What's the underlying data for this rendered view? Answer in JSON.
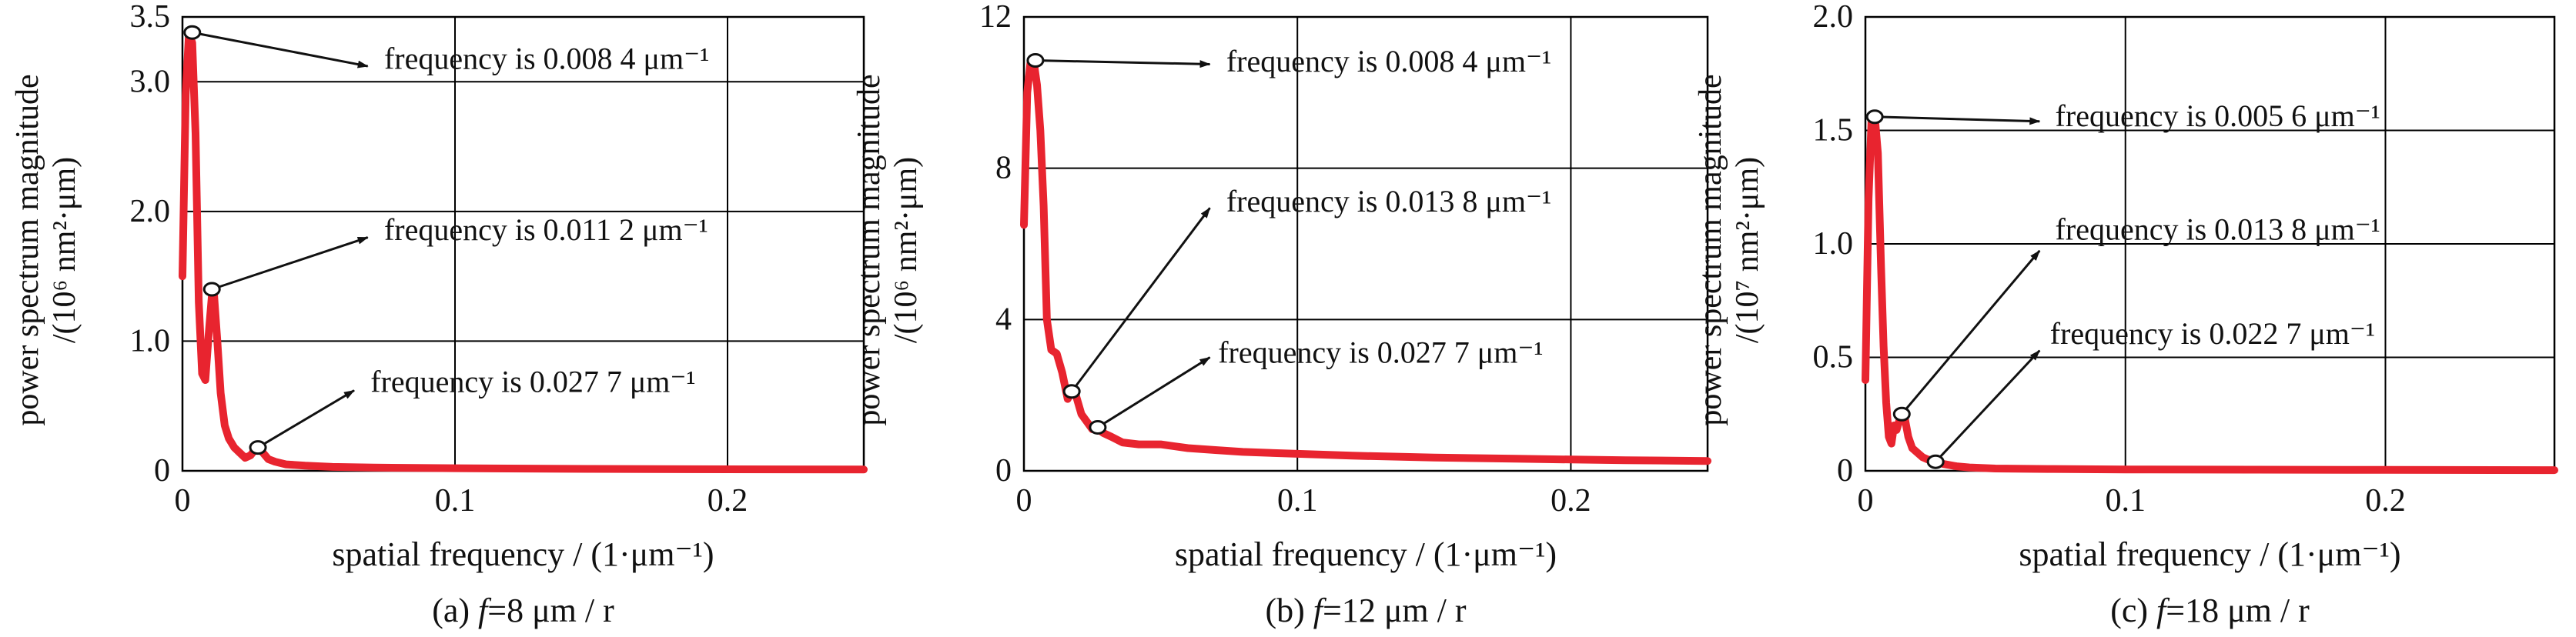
{
  "chart_data": [
    {
      "type": "line",
      "caption": "(a) f=8 μm / r",
      "caption_prefix": "(a) ",
      "caption_var": "f",
      "caption_rest": "=8 μm / r",
      "xlabel": "spatial frequency / (1·μm⁻¹)",
      "ylabel_line1": "power spectrum magnitude",
      "ylabel_line2": "/(10⁶ nm²·μm)",
      "xlim": [
        0,
        0.25
      ],
      "ylim": [
        0,
        3.5
      ],
      "x_ticks": [
        {
          "value": 0,
          "label": "0"
        },
        {
          "value": 0.1,
          "label": "0.1"
        },
        {
          "value": 0.2,
          "label": "0.2"
        }
      ],
      "y_ticks": [
        {
          "value": 0,
          "label": "0"
        },
        {
          "value": 1.0,
          "label": "1.0"
        },
        {
          "value": 2.0,
          "label": "2.0"
        },
        {
          "value": 3.0,
          "label": "3.0"
        },
        {
          "value": 3.5,
          "label": "3.5"
        }
      ],
      "color": "#e8242f",
      "x": [
        0.0,
        0.0012,
        0.0024,
        0.0036,
        0.0048,
        0.006,
        0.0072,
        0.0084,
        0.0096,
        0.0108,
        0.0116,
        0.0128,
        0.014,
        0.0155,
        0.017,
        0.019,
        0.021,
        0.023,
        0.025,
        0.0265,
        0.0277,
        0.0295,
        0.0315,
        0.034,
        0.038,
        0.045,
        0.055,
        0.07,
        0.1,
        0.15,
        0.2,
        0.25
      ],
      "y": [
        1.5,
        2.9,
        3.38,
        3.3,
        2.6,
        1.3,
        0.75,
        0.7,
        1.05,
        1.35,
        1.35,
        1.0,
        0.6,
        0.35,
        0.25,
        0.18,
        0.14,
        0.1,
        0.12,
        0.16,
        0.18,
        0.14,
        0.09,
        0.07,
        0.05,
        0.04,
        0.03,
        0.025,
        0.02,
        0.015,
        0.012,
        0.01
      ],
      "annotations": [
        {
          "label": "frequency is 0.008 4 μm⁻¹",
          "peak_x": 0.0036,
          "peak_y": 3.38,
          "arrow_x": 0.068,
          "arrow_y": 3.12,
          "text_x": 0.074,
          "text_y": 3.17
        },
        {
          "label": "frequency is 0.011 2 μm⁻¹",
          "peak_x": 0.0108,
          "peak_y": 1.4,
          "arrow_x": 0.068,
          "arrow_y": 1.8,
          "text_x": 0.074,
          "text_y": 1.85
        },
        {
          "label": "frequency is 0.027 7 μm⁻¹",
          "peak_x": 0.0277,
          "peak_y": 0.18,
          "arrow_x": 0.063,
          "arrow_y": 0.62,
          "text_x": 0.069,
          "text_y": 0.68
        }
      ]
    },
    {
      "type": "line",
      "caption": "(b) f=12 μm / r",
      "caption_prefix": "(b) ",
      "caption_var": "f",
      "caption_rest": "=12 μm / r",
      "xlabel": "spatial frequency / (1·μm⁻¹)",
      "ylabel_line1": "power spectrum magnitude",
      "ylabel_line2": "/(10⁶ nm²·μm)",
      "xlim": [
        0,
        0.25
      ],
      "ylim": [
        0,
        12
      ],
      "x_ticks": [
        {
          "value": 0,
          "label": "0"
        },
        {
          "value": 0.1,
          "label": "0.1"
        },
        {
          "value": 0.2,
          "label": "0.2"
        }
      ],
      "y_ticks": [
        {
          "value": 0,
          "label": "0"
        },
        {
          "value": 4,
          "label": "4"
        },
        {
          "value": 8,
          "label": "8"
        },
        {
          "value": 12,
          "label": "12"
        }
      ],
      "color": "#e8242f",
      "x": [
        0.0,
        0.0012,
        0.0024,
        0.0036,
        0.0048,
        0.006,
        0.0072,
        0.0084,
        0.01,
        0.012,
        0.014,
        0.016,
        0.0175,
        0.019,
        0.021,
        0.023,
        0.025,
        0.027,
        0.029,
        0.032,
        0.036,
        0.042,
        0.05,
        0.06,
        0.07,
        0.08,
        0.1,
        0.12,
        0.15,
        0.18,
        0.2,
        0.22,
        0.25
      ],
      "y": [
        6.5,
        10.0,
        10.8,
        10.8,
        10.2,
        9.0,
        7.0,
        4.0,
        3.2,
        3.1,
        2.6,
        1.9,
        2.1,
        2.0,
        1.5,
        1.3,
        1.1,
        1.1,
        1.0,
        0.9,
        0.75,
        0.7,
        0.7,
        0.6,
        0.55,
        0.5,
        0.45,
        0.4,
        0.35,
        0.32,
        0.3,
        0.28,
        0.26
      ],
      "annotations": [
        {
          "label": "frequency is 0.008 4 μm⁻¹",
          "peak_x": 0.0042,
          "peak_y": 10.85,
          "arrow_x": 0.068,
          "arrow_y": 10.75,
          "text_x": 0.074,
          "text_y": 10.8
        },
        {
          "label": "frequency is 0.013 8 μm⁻¹",
          "peak_x": 0.0175,
          "peak_y": 2.1,
          "arrow_x": 0.068,
          "arrow_y": 6.95,
          "text_x": 0.074,
          "text_y": 7.1
        },
        {
          "label": "frequency is 0.027 7 μm⁻¹",
          "peak_x": 0.027,
          "peak_y": 1.15,
          "arrow_x": 0.068,
          "arrow_y": 3.0,
          "text_x": 0.071,
          "text_y": 3.1
        }
      ]
    },
    {
      "type": "line",
      "caption": "(c) f=18 μm / r",
      "caption_prefix": "(c) ",
      "caption_var": "f",
      "caption_rest": "=18 μm / r",
      "xlabel": "spatial frequency / (1·μm⁻¹)",
      "ylabel_line1": "power spectrum magnitude",
      "ylabel_line2": "/(10⁷ nm²·μm)",
      "xlim": [
        0,
        0.265
      ],
      "ylim": [
        0,
        2.0
      ],
      "x_ticks": [
        {
          "value": 0,
          "label": "0"
        },
        {
          "value": 0.1,
          "label": "0.1"
        },
        {
          "value": 0.2,
          "label": "0.2"
        }
      ],
      "y_ticks": [
        {
          "value": 0,
          "label": "0"
        },
        {
          "value": 0.5,
          "label": "0.5"
        },
        {
          "value": 1.0,
          "label": "1.0"
        },
        {
          "value": 1.5,
          "label": "1.5"
        },
        {
          "value": 2.0,
          "label": "2.0"
        }
      ],
      "color": "#e8242f",
      "x": [
        0.0,
        0.0012,
        0.0024,
        0.0036,
        0.0048,
        0.006,
        0.007,
        0.008,
        0.009,
        0.01,
        0.011,
        0.012,
        0.013,
        0.014,
        0.015,
        0.0165,
        0.018,
        0.02,
        0.022,
        0.024,
        0.026,
        0.028,
        0.03,
        0.035,
        0.04,
        0.05,
        0.07,
        0.1,
        0.15,
        0.2,
        0.265
      ],
      "y": [
        0.4,
        1.2,
        1.56,
        1.56,
        1.4,
        0.9,
        0.55,
        0.3,
        0.15,
        0.12,
        0.2,
        0.18,
        0.22,
        0.26,
        0.24,
        0.15,
        0.1,
        0.08,
        0.06,
        0.05,
        0.045,
        0.04,
        0.03,
        0.02,
        0.015,
        0.01,
        0.008,
        0.006,
        0.005,
        0.004,
        0.003
      ],
      "annotations": [
        {
          "label": "frequency is 0.005 6 μm⁻¹",
          "peak_x": 0.0036,
          "peak_y": 1.56,
          "arrow_x": 0.067,
          "arrow_y": 1.54,
          "text_x": 0.073,
          "text_y": 1.56
        },
        {
          "label": "frequency is 0.013 8 μm⁻¹",
          "peak_x": 0.014,
          "peak_y": 0.25,
          "arrow_x": 0.067,
          "arrow_y": 0.97,
          "text_x": 0.073,
          "text_y": 1.06
        },
        {
          "label": "frequency is 0.022 7 μm⁻¹",
          "peak_x": 0.027,
          "peak_y": 0.04,
          "arrow_x": 0.067,
          "arrow_y": 0.53,
          "text_x": 0.071,
          "text_y": 0.6
        }
      ]
    }
  ]
}
